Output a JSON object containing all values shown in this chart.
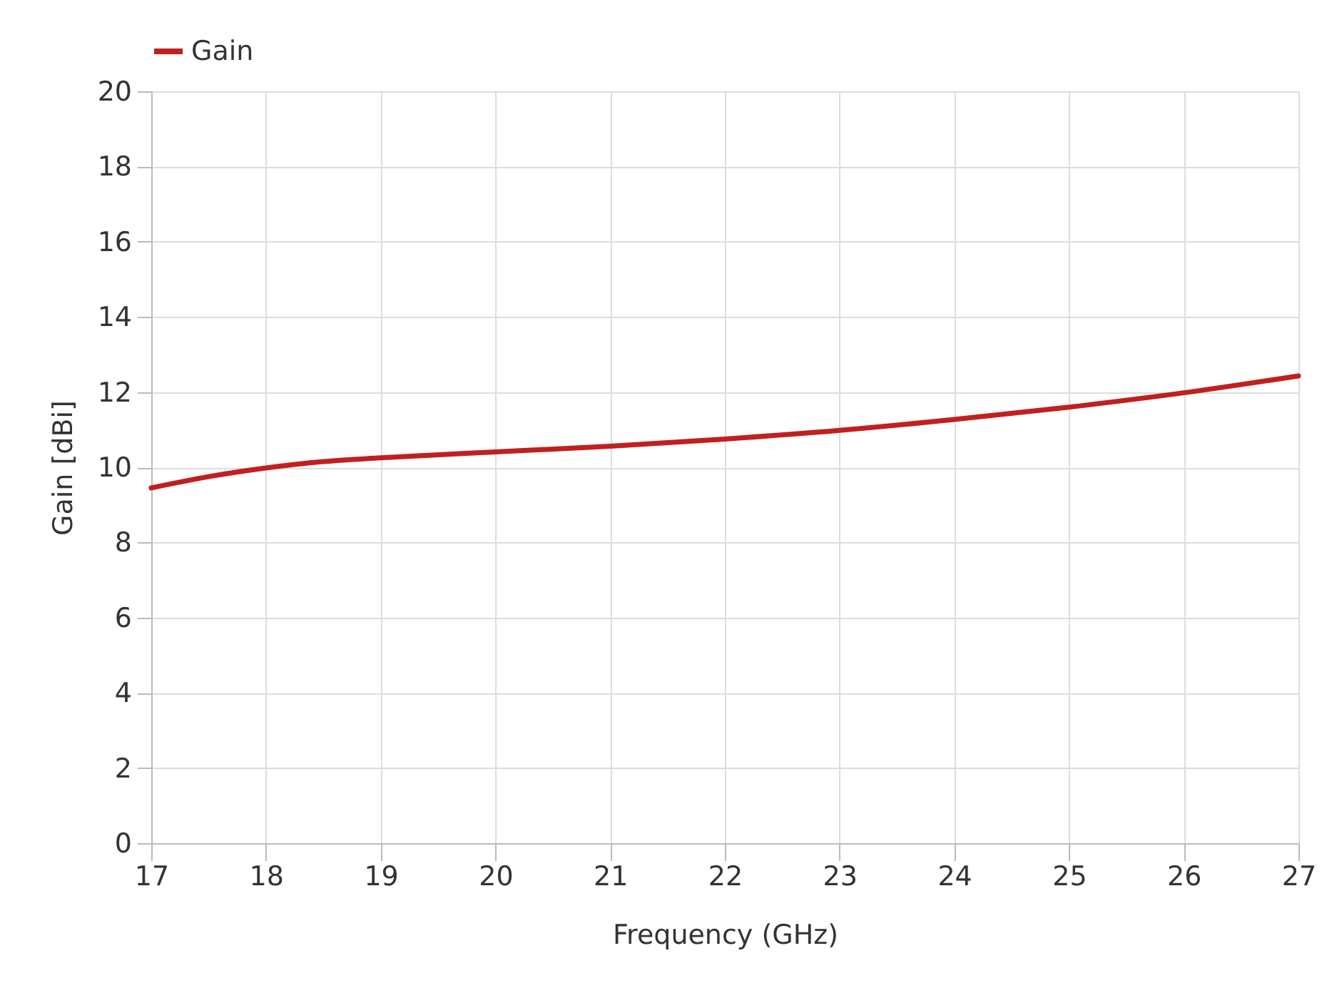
{
  "chart_data": {
    "type": "line",
    "xlabel": "Frequency (GHz)",
    "ylabel": "Gain [dBi]",
    "x": [
      17,
      17.5,
      18,
      18.5,
      19,
      20,
      21,
      22,
      23,
      24,
      25,
      26,
      27
    ],
    "series": [
      {
        "name": "Gain",
        "color": "#c0201e",
        "values": [
          9.45,
          9.75,
          9.98,
          10.15,
          10.25,
          10.41,
          10.56,
          10.75,
          10.98,
          11.27,
          11.6,
          11.98,
          12.43
        ]
      }
    ],
    "xlim": [
      17,
      27
    ],
    "xticks": [
      17,
      18,
      19,
      20,
      21,
      22,
      23,
      24,
      25,
      26,
      27
    ],
    "ylim": [
      0,
      20
    ],
    "yticks": [
      0,
      2,
      4,
      6,
      8,
      10,
      12,
      14,
      16,
      18,
      20
    ],
    "grid": true,
    "legend": "top",
    "marker": "none",
    "line_style": "solid"
  }
}
